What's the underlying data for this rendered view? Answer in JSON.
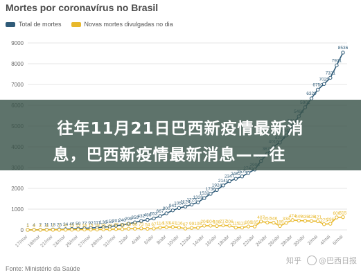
{
  "chart_data": {
    "type": "line",
    "title": "Mortes por coronavírus no Brasil",
    "ylim": [
      0,
      9000
    ],
    "yticks": [
      0,
      1000,
      2000,
      3000,
      4000,
      5000,
      6000,
      7000,
      8000,
      9000
    ],
    "categories": [
      "17/mar",
      "18/mar",
      "19/mar",
      "20/mar",
      "21/mar",
      "22/mar",
      "23/mar",
      "24/mar",
      "25/mar",
      "26/mar",
      "27/mar",
      "28/mar",
      "29/mar",
      "30/mar",
      "31/mar",
      "1/abr",
      "2/abr",
      "3/abr",
      "4/abr",
      "5/abr",
      "6/abr",
      "7/abr",
      "8/abr",
      "9/abr",
      "10/abr",
      "11/abr",
      "12/abr",
      "13/abr",
      "14/abr",
      "15/abr",
      "16/abr",
      "17/abr",
      "18/abr",
      "19/abr",
      "20/abr",
      "21/abr",
      "22/abr",
      "23/abr",
      "24/abr",
      "25/abr",
      "26/abr",
      "27/abr",
      "28/abr",
      "29/abr",
      "30/abr",
      "1/mai",
      "2/mai",
      "3/mai",
      "4/mai",
      "5/mai",
      "6/mai"
    ],
    "visible_tick_labels": [
      "17/mar",
      "19/mar",
      "21/mar",
      "23/mar",
      "25/mar",
      "27/mar",
      "29/mar",
      "31/mar",
      "2/abr",
      "4/abr",
      "6/abr",
      "8/abr",
      "10/abr",
      "12/abr",
      "14/abr",
      "16/abr",
      "18/abr",
      "20/abr",
      "22/abr",
      "24/abr",
      "26/abr",
      "28/abr",
      "30/abr",
      "2/mai",
      "4/mai",
      "6/mai"
    ],
    "series": [
      {
        "name": "Total de mortes",
        "color": "#2f5b78",
        "values": [
          1,
          4,
          7,
          11,
          18,
          25,
          34,
          46,
          59,
          77,
          92,
          111,
          136,
          159,
          201,
          240,
          299,
          359,
          432,
          486,
          553,
          667,
          800,
          941,
          1057,
          1124,
          1223,
          1328,
          1532,
          1736,
          1924,
          2141,
          2347,
          2462,
          2575,
          2741,
          2906,
          3313,
          3670,
          4016,
          4205,
          4543,
          5017,
          5466,
          5901,
          6329,
          6750,
          7025,
          7321,
          7921,
          8536
        ],
        "labels": {
          "50": "8536",
          "49": "7921",
          "48": "7321"
        }
      },
      {
        "name": "Novas mortes divulgadas no dia",
        "color": "#e8b82b",
        "values": [
          1,
          3,
          3,
          4,
          7,
          7,
          9,
          12,
          13,
          18,
          15,
          19,
          25,
          23,
          42,
          39,
          59,
          60,
          73,
          54,
          67,
          114,
          133,
          141,
          116,
          67,
          99,
          105,
          204,
          204,
          188,
          217,
          206,
          115,
          113,
          166,
          165,
          407,
          357,
          346,
          189,
          338,
          474,
          449,
          435,
          428,
          421,
          275,
          296,
          600,
          615
        ],
        "labels": {
          "49": "600",
          "50": "615",
          "48": "296"
        }
      }
    ],
    "grid": true,
    "legend_position": "top-left"
  },
  "banner": {
    "line1": "往年11月21日巴西新疫情最新消",
    "line2": "息，巴西新疫情最新消息——往"
  },
  "source": "Fonte: Ministério da Saúde",
  "watermark": {
    "site": "知乎",
    "author": "@巴西日报"
  }
}
